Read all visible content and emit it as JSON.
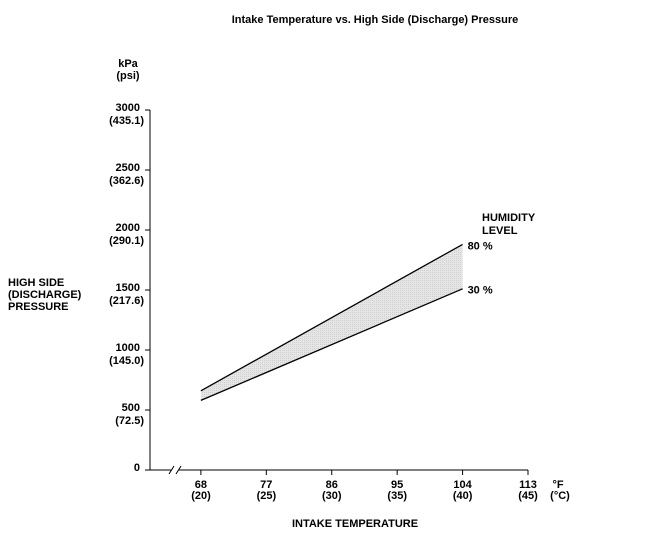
{
  "chart_data": {
    "type": "area_band",
    "title": "Intake Temperature vs. High Side (Discharge) Pressure",
    "xlabel": "INTAKE TEMPERATURE",
    "ylabel": [
      "HIGH SIDE",
      "(DISCHARGE)",
      "PRESSURE"
    ],
    "yunits": [
      "kPa",
      "(psi)"
    ],
    "xunits": [
      "°F",
      "(°C)"
    ],
    "legend_title": [
      "HUMIDITY",
      "LEVEL"
    ],
    "x": [
      68,
      104
    ],
    "series": [
      {
        "name": "80 %",
        "color": "#000000",
        "values": [
          660,
          1880
        ]
      },
      {
        "name": "30 %",
        "color": "#000000",
        "values": [
          580,
          1510
        ]
      }
    ],
    "band_color": "#cfcfcf",
    "xlim": [
      61,
      113
    ],
    "xticks": [
      68,
      77,
      86,
      95,
      104,
      113
    ],
    "x2lim": [
      16.1,
      45
    ],
    "x2ticks": [
      {
        "value": 20,
        "label": "(20)"
      },
      {
        "value": 25,
        "label": "(25)"
      },
      {
        "value": 30,
        "label": "(30)"
      },
      {
        "value": 35,
        "label": "(35)"
      },
      {
        "value": 40,
        "label": "(40)"
      },
      {
        "value": 45,
        "label": "(45)"
      }
    ],
    "ylim": [
      0,
      3000
    ],
    "yticks": [
      0,
      500,
      1000,
      1500,
      2000,
      2500,
      3000
    ],
    "y2lim": [
      0,
      435.1
    ],
    "y2ticks": [
      {
        "value": 72.5,
        "label": "(72.5)"
      },
      {
        "value": 145.0,
        "label": "(145.0)"
      },
      {
        "value": 217.6,
        "label": "(217.6)"
      },
      {
        "value": 290.1,
        "label": "(290.1)"
      },
      {
        "value": 362.6,
        "label": "(362.6)"
      },
      {
        "value": 435.1,
        "label": "(435.1)"
      }
    ]
  }
}
